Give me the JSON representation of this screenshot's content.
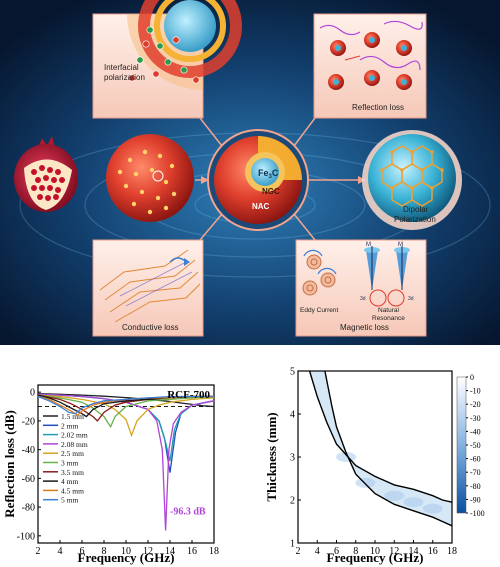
{
  "diagram": {
    "core_label": "Fe",
    "core_label_sub": "3",
    "core_label_tail": "C",
    "shell_label_ngc": "NGC",
    "shell_label_nac": "NAC",
    "panels": {
      "interfacial": "Interfacial\npolarization",
      "reflection": "Reflection loss",
      "dipolar": "Dipolar\nPolarization",
      "conductive": "Conductive loss",
      "magnetic": "Magnetic loss",
      "eddy": "Eddy Current",
      "natural": "Natural\nResonance",
      "m1": "M",
      "m2": "M",
      "d1": "3d",
      "d2": "3d"
    }
  },
  "chart_data": [
    {
      "type": "line",
      "title": "RCF-700",
      "xlabel": "Frequency (GHz)",
      "ylabel": "Reflection loss (dB)",
      "xlim": [
        2,
        18
      ],
      "ylim": [
        -105,
        5
      ],
      "xticks": [
        2,
        4,
        6,
        8,
        10,
        12,
        14,
        16,
        18
      ],
      "yticks": [
        0,
        -20,
        -40,
        -60,
        -80,
        -100
      ],
      "annotation": "-96.3 dB",
      "series": [
        {
          "name": "1.5 mm",
          "color": "#222222",
          "x": [
            2,
            4,
            6,
            8,
            10,
            12,
            14,
            15,
            16,
            17,
            18
          ],
          "y": [
            -1,
            -1.5,
            -2,
            -2.8,
            -3.8,
            -5,
            -6.5,
            -7.5,
            -8.5,
            -9.5,
            -10
          ]
        },
        {
          "name": "2 mm",
          "color": "#1f4fbf",
          "x": [
            2,
            4,
            6,
            8,
            10,
            12,
            13,
            13.5,
            14,
            14.5,
            15,
            16,
            18
          ],
          "y": [
            -1.5,
            -2,
            -3,
            -4.5,
            -7,
            -12,
            -20,
            -32,
            -56,
            -28,
            -15,
            -9,
            -6
          ]
        },
        {
          "name": "2.02 mm",
          "color": "#1e9fb0",
          "x": [
            2,
            4,
            6,
            8,
            10,
            12,
            13,
            13.6,
            14,
            14.4,
            15,
            16,
            18
          ],
          "y": [
            -1.5,
            -2,
            -3,
            -4.5,
            -7,
            -12,
            -20,
            -35,
            -48,
            -26,
            -15,
            -9,
            -6
          ]
        },
        {
          "name": "2.08 mm",
          "color": "#b044d8",
          "x": [
            2,
            4,
            6,
            8,
            10,
            12,
            12.8,
            13.3,
            13.6,
            13.9,
            14.3,
            15,
            16,
            18
          ],
          "y": [
            -1.5,
            -2,
            -3,
            -4.5,
            -7,
            -12,
            -20,
            -40,
            -96.3,
            -40,
            -22,
            -14,
            -9,
            -6
          ]
        },
        {
          "name": "2.5 mm",
          "color": "#d6a61e",
          "x": [
            2,
            4,
            6,
            8,
            9,
            10,
            10.5,
            11,
            12,
            13,
            14,
            16,
            18
          ],
          "y": [
            -2,
            -3,
            -5,
            -8,
            -12,
            -19,
            -30,
            -20,
            -12,
            -9,
            -7,
            -5,
            -4
          ]
        },
        {
          "name": "3 mm",
          "color": "#6ab04c",
          "x": [
            2,
            4,
            6,
            7,
            8,
            8.6,
            9,
            10,
            11,
            12,
            14,
            16,
            18
          ],
          "y": [
            -2,
            -4,
            -7,
            -11,
            -17,
            -24,
            -17,
            -10,
            -8,
            -6,
            -5,
            -4,
            -3
          ]
        },
        {
          "name": "3.5 mm",
          "color": "#8b1a1a",
          "x": [
            2,
            4,
            5,
            6,
            7,
            7.4,
            8,
            9,
            10,
            12,
            14,
            16,
            18
          ],
          "y": [
            -2,
            -5,
            -8,
            -12,
            -17,
            -20,
            -14,
            -9,
            -7,
            -5,
            -4,
            -3,
            -3
          ]
        },
        {
          "name": "4 mm",
          "color": "#1a1a1a",
          "x": [
            2,
            3,
            4,
            5,
            6,
            6.4,
            7,
            8,
            10,
            12,
            14,
            16,
            18
          ],
          "y": [
            -2,
            -4,
            -7,
            -11,
            -15,
            -17,
            -12,
            -8,
            -6,
            -5,
            -4,
            -3,
            -3
          ]
        },
        {
          "name": "4.5 mm",
          "color": "#e07b1c",
          "x": [
            2,
            3,
            4,
            5,
            5.6,
            6,
            7,
            8,
            10,
            12,
            14,
            16,
            18
          ],
          "y": [
            -3,
            -5,
            -9,
            -13,
            -16,
            -13,
            -9,
            -7,
            -5,
            -4,
            -4,
            -3,
            -3
          ]
        },
        {
          "name": "5 mm",
          "color": "#3a7fd6",
          "x": [
            2,
            3,
            4,
            4.8,
            5.4,
            6,
            7,
            8,
            10,
            12,
            14,
            16,
            18
          ],
          "y": [
            -3,
            -6,
            -10,
            -14,
            -15,
            -11,
            -8,
            -6,
            -5,
            -4,
            -3,
            -3,
            -3
          ]
        }
      ]
    },
    {
      "type": "heatmap",
      "xlabel": "Frequency (GHz)",
      "ylabel": "Thickness (mm)",
      "xlim": [
        2,
        18
      ],
      "ylim": [
        1,
        5
      ],
      "xticks": [
        2,
        4,
        6,
        8,
        10,
        12,
        14,
        16,
        18
      ],
      "yticks": [
        1,
        2,
        3,
        4,
        5
      ],
      "colorbar_ticks": [
        0,
        -10,
        -20,
        -30,
        -40,
        -50,
        -60,
        -70,
        -80,
        -90,
        -100
      ],
      "contour_upper": {
        "x": [
          3.2,
          4,
          5,
          6,
          8,
          10,
          12,
          14,
          16,
          17,
          18
        ],
        "y": [
          5,
          4.4,
          3.8,
          3.3,
          2.8,
          2.55,
          2.35,
          2.25,
          2.1,
          2.0,
          1.95
        ]
      },
      "contour_lower": {
        "x": [
          4.8,
          5.5,
          6,
          7,
          8,
          10,
          12,
          14,
          16,
          17,
          18
        ],
        "y": [
          5,
          4.2,
          3.7,
          3.1,
          2.6,
          2.15,
          1.9,
          1.75,
          1.6,
          1.5,
          1.4
        ]
      }
    }
  ]
}
